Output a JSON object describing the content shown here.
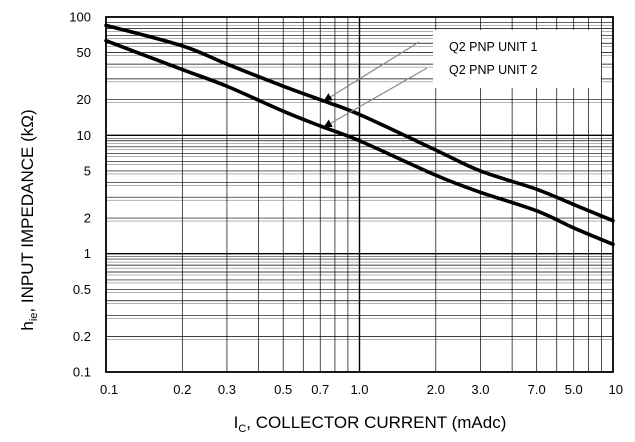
{
  "chart_data": {
    "type": "line",
    "xscale": "log",
    "yscale": "log",
    "xlim": [
      0.1,
      10
    ],
    "ylim": [
      0.1,
      100
    ],
    "grid": true,
    "legend_position": "top-right",
    "x_tick_labels": [
      "0.1",
      "0.2",
      "0.3",
      "0.5",
      "0.7",
      "1.0",
      "2.0",
      "3.0",
      "7.0",
      "5.0",
      "10"
    ],
    "y_tick_labels": [
      "100",
      "50",
      "20",
      "10",
      "5",
      "2",
      "1",
      "0.5",
      "0.2",
      "0.1"
    ],
    "xlabel_main": "I",
    "xlabel_sub": "C",
    "xlabel_rest": ", COLLECTOR CURRENT (mAdc)",
    "ylabel_main": "h",
    "ylabel_sub": "ie",
    "ylabel_rest": ", INPUT IMPEDANCE (kΩ)",
    "series": [
      {
        "name": "Q2 PNP UNIT 1",
        "x": [
          0.1,
          0.2,
          0.3,
          0.5,
          0.7,
          1.0,
          2.0,
          3.0,
          5.0,
          7.0,
          10
        ],
        "y": [
          85,
          57,
          40,
          26,
          20,
          15,
          7.5,
          5.0,
          3.5,
          2.6,
          1.9
        ]
      },
      {
        "name": "Q2 PNP UNIT 2",
        "x": [
          0.1,
          0.2,
          0.3,
          0.5,
          0.7,
          1.0,
          2.0,
          3.0,
          5.0,
          7.0,
          10
        ],
        "y": [
          63,
          36,
          26,
          16,
          12,
          9.0,
          4.6,
          3.3,
          2.3,
          1.65,
          1.2
        ]
      }
    ],
    "colors": {
      "line": "#000000",
      "grid": "#000000",
      "arrow": "#888888"
    }
  }
}
